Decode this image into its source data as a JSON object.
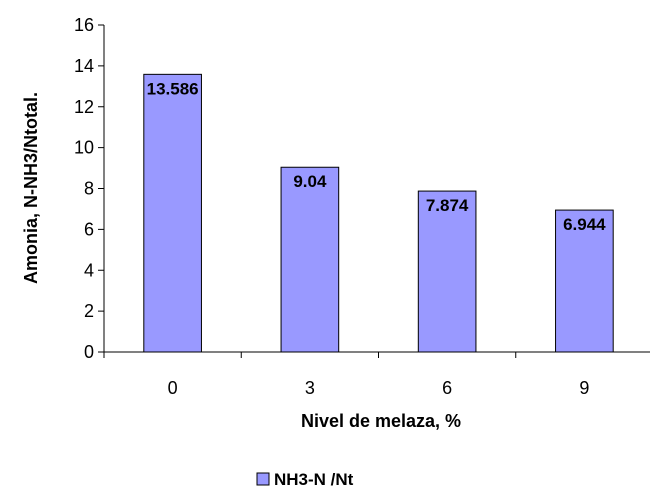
{
  "chart_data": {
    "type": "bar",
    "categories": [
      "0",
      "3",
      "6",
      "9"
    ],
    "series": [
      {
        "name": "NH3-N /Nt",
        "values": [
          13.586,
          9.04,
          7.874,
          6.944
        ],
        "labels": [
          "13.586",
          "9.04",
          "7.874",
          "6.944"
        ]
      }
    ],
    "xlabel": "Nivel de melaza,  %",
    "ylabel": "Amonia, N-NH3/Ntotal.",
    "ylim": [
      0,
      16
    ],
    "yticks": [
      0,
      2,
      4,
      6,
      8,
      10,
      12,
      14,
      16
    ],
    "grid": false,
    "legend_position": "bottom",
    "bar_color": "#9999ff",
    "bar_border_color": "#000000"
  }
}
